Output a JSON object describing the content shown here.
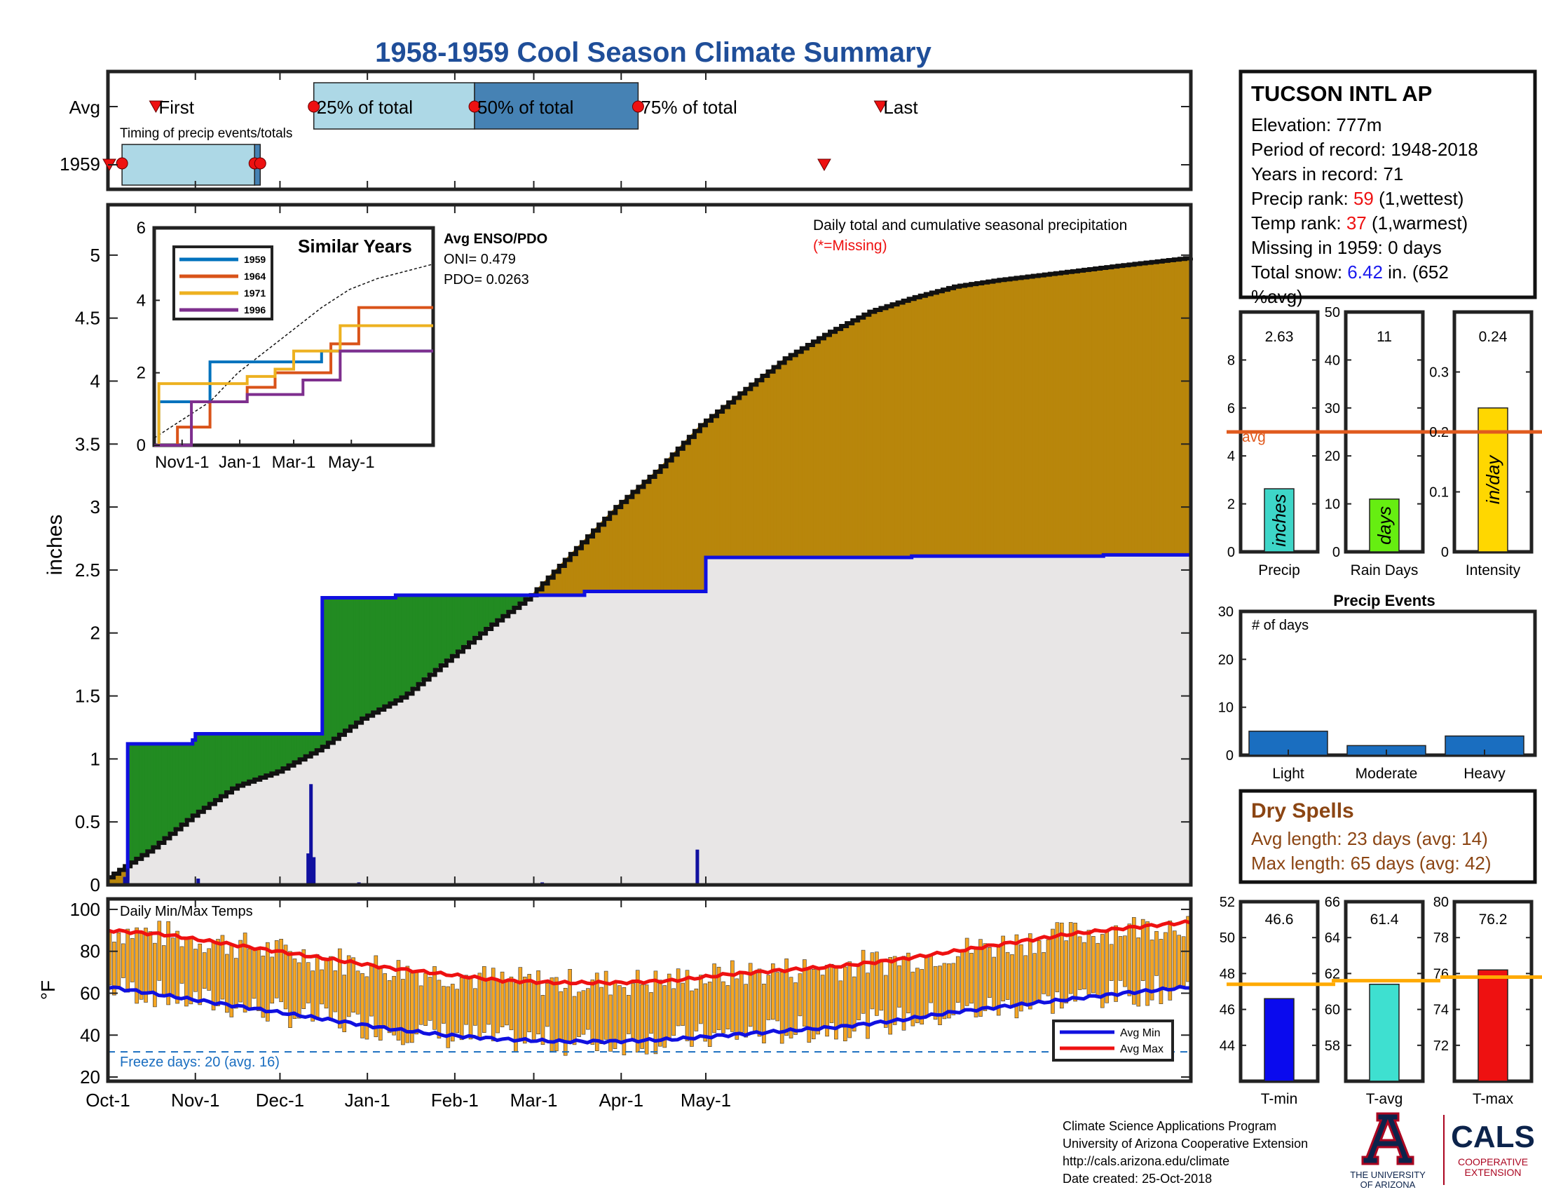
{
  "title": "1958-1959 Cool Season Climate Summary",
  "timing": {
    "row_labels": [
      "Avg",
      "1959"
    ],
    "avg_markers": {
      "first": "First",
      "p25": "25% of total",
      "p50": "50% of total",
      "p75": "75% of total",
      "last": "Last"
    },
    "caption": "Timing of precip events/totals",
    "avg_first_day": 17,
    "avg_p25_day": 73,
    "avg_p50_day": 130,
    "avg_p75_day": 188,
    "avg_last_day": 274,
    "y1959_first_day": 0,
    "y1959_p25_day": 5,
    "y1959_p50_day": 52,
    "y1959_p75_day": 54,
    "y1959_last_day": 254
  },
  "station": {
    "name": "TUCSON INTL AP",
    "elevation": "Elevation: 777m",
    "period": "Period of record: 1948-2018",
    "years": "Years in record: 71",
    "precip_rank_label": "Precip rank: ",
    "precip_rank_value": "59",
    "precip_rank_suffix": " (1,wettest)",
    "temp_rank_label": "Temp rank: ",
    "temp_rank_value": "37",
    "temp_rank_suffix": " (1,warmest)",
    "missing": "Missing in 1959: 0 days",
    "snow_label": "Total snow: ",
    "snow_value": "6.42",
    "snow_suffix": " in. (652",
    "snow_suffix2": "%avg)"
  },
  "precip_main": {
    "ylabel": "inches",
    "annotation": "Daily total and cumulative seasonal precipitation",
    "missing_note": "(*=Missing)",
    "yticks": [
      "0",
      "0.5",
      "1",
      "1.5",
      "2",
      "2.5",
      "3",
      "3.5",
      "4",
      "4.5",
      "5"
    ]
  },
  "inset": {
    "title": "Similar Years",
    "enso_title": "Avg ENSO/PDO",
    "oni": "ONI= 0.479",
    "pdo": "PDO= 0.0263",
    "yticks": [
      "0",
      "2",
      "4",
      "6"
    ],
    "xticks": [
      "Nov1-1",
      "Jan-1",
      "Mar-1",
      "May-1"
    ],
    "legend": [
      "1959",
      "1964",
      "1971",
      "1996"
    ]
  },
  "bars_summary": {
    "precip": {
      "label": "Precip",
      "value_text": "2.63",
      "unit": "inches",
      "yticks": [
        "0",
        "2",
        "4",
        "6",
        "8"
      ],
      "avg_label": "avg"
    },
    "rain_days": {
      "label": "Rain Days",
      "value_text": "11",
      "unit": "days",
      "yticks": [
        "0",
        "10",
        "20",
        "30",
        "40",
        "50"
      ]
    },
    "intensity": {
      "label": "Intensity",
      "value_text": "0.24",
      "unit": "in/day",
      "yticks": [
        "0",
        "0.1",
        "0.2",
        "0.3"
      ]
    }
  },
  "precip_events": {
    "title": "Precip Events",
    "ylabel": "# of days",
    "yticks": [
      "0",
      "10",
      "20",
      "30"
    ],
    "categories": [
      "Light",
      "Moderate",
      "Heavy"
    ]
  },
  "dry_spells": {
    "title": "Dry Spells",
    "avg": "Avg length: 23 days (avg: 14)",
    "max": "Max length: 65 days (avg: 42)"
  },
  "temps_main": {
    "label": "Daily Min/Max Temps",
    "ylabel": "°F",
    "yticks": [
      "20",
      "40",
      "60",
      "80",
      "100"
    ],
    "freeze": "Freeze days: 20 (avg. 16)",
    "legend_min": "Avg Min",
    "legend_max": "Avg Max",
    "xticks": [
      "Oct-1",
      "Nov-1",
      "Dec-1",
      "Jan-1",
      "Feb-1",
      "Mar-1",
      "Apr-1",
      "May-1"
    ]
  },
  "temp_summary": {
    "tmin": {
      "label": "T-min",
      "value_text": "46.6",
      "yticks": [
        "44",
        "46",
        "48",
        "50",
        "52"
      ]
    },
    "tavg": {
      "label": "T-avg",
      "value_text": "61.4",
      "yticks": [
        "58",
        "60",
        "62",
        "64",
        "66"
      ]
    },
    "tmax": {
      "label": "T-max",
      "value_text": "76.2",
      "yticks": [
        "72",
        "74",
        "76",
        "78",
        "80"
      ]
    }
  },
  "footer": {
    "line1": "Climate Science Applications Program",
    "line2": "University of Arizona Cooperative Extension",
    "line3": "http://cals.arizona.edu/climate",
    "line4": " Date created: 25-Oct-2018",
    "ua_line1": "THE UNIVERSITY",
    "ua_line2": "OF ARIZONA",
    "cals": "CALS",
    "cals_sub1": "COOPERATIVE",
    "cals_sub2": "EXTENSION"
  },
  "colors": {
    "title": "#1f4e99",
    "above_avg": "#b8860b",
    "below_avg_gap": "#228b22",
    "avg_fill": "#e8e6e6",
    "cum_line": "#1010e0",
    "temp_bar": "#f5a623",
    "avg_min_line": "#1010e0",
    "avg_max_line": "#ee1111",
    "rank_red": "#ee1111",
    "snow_blue": "#1a1aee",
    "dry_brown": "#8b4513",
    "avg_orange": "#e05a1e",
    "precip_bar": "#3ed6c8",
    "raindays_bar": "#66ee11",
    "intensity_bar": "#ffd700",
    "event_bar": "#1a6ec0",
    "tmin_bar": "#0a0aee",
    "tavg_bar": "#3ee0d0",
    "tmax_bar": "#ee1111",
    "temp_avg_line": "#ffaa00"
  },
  "chart_data": [
    {
      "type": "area",
      "name": "cumulative_precip",
      "xlabel": "",
      "ylabel": "inches",
      "ylim": [
        0,
        5.4
      ],
      "x_days": [
        0,
        6,
        7,
        14,
        30,
        31,
        46,
        55,
        76,
        102,
        151,
        169,
        212,
        285,
        353,
        384
      ],
      "observed_cum": [
        0,
        0.05,
        1.12,
        1.12,
        1.15,
        1.2,
        1.2,
        1.2,
        2.28,
        2.3,
        2.3,
        2.33,
        2.6,
        2.61,
        2.62,
        2.63
      ],
      "avg_cum_x_days": [
        0,
        15,
        30,
        45,
        60,
        75,
        90,
        105,
        120,
        135,
        150,
        165,
        180,
        195,
        210,
        225,
        240,
        255,
        270,
        285,
        300,
        315,
        330,
        345,
        360,
        384
      ],
      "avg_cum": [
        0.06,
        0.28,
        0.55,
        0.78,
        0.9,
        1.08,
        1.32,
        1.5,
        1.78,
        2.05,
        2.3,
        2.65,
        3.0,
        3.3,
        3.65,
        3.92,
        4.18,
        4.38,
        4.55,
        4.66,
        4.75,
        4.8,
        4.84,
        4.88,
        4.92,
        4.98
      ],
      "daily_x_days": [
        6,
        7,
        32,
        71,
        72,
        73,
        89,
        154,
        209
      ],
      "daily_precip": [
        0.06,
        0.13,
        0.05,
        0.25,
        0.8,
        0.22,
        0.02,
        0.02,
        0.28
      ]
    },
    {
      "type": "line",
      "name": "similar_years",
      "ylim": [
        0,
        6
      ],
      "x_day_range": [
        0,
        300
      ],
      "series": [
        {
          "name": "1959",
          "x": [
            0,
            5,
            10,
            30,
            60,
            100,
            140,
            180,
            300
          ],
          "y": [
            0,
            1.2,
            1.2,
            1.2,
            2.3,
            2.3,
            2.3,
            2.6,
            2.6
          ]
        },
        {
          "name": "1964",
          "x": [
            0,
            25,
            60,
            100,
            130,
            190,
            220,
            300
          ],
          "y": [
            0,
            0.5,
            1.2,
            1.6,
            2.0,
            2.8,
            3.8,
            3.8
          ]
        },
        {
          "name": "1971",
          "x": [
            0,
            5,
            60,
            100,
            130,
            150,
            200,
            300
          ],
          "y": [
            0,
            1.7,
            1.7,
            1.9,
            2.1,
            2.6,
            3.3,
            3.3
          ]
        },
        {
          "name": "1996",
          "x": [
            0,
            30,
            40,
            60,
            100,
            160,
            200,
            300
          ],
          "y": [
            0,
            0,
            1.2,
            1.2,
            1.4,
            1.8,
            2.6,
            2.6
          ]
        }
      ],
      "avg_x": [
        0,
        30,
        60,
        90,
        120,
        150,
        180,
        210,
        240,
        270,
        300
      ],
      "avg_y": [
        0.2,
        0.7,
        1.2,
        2.0,
        2.6,
        3.2,
        3.8,
        4.3,
        4.6,
        4.8,
        5.0
      ]
    },
    {
      "type": "bar",
      "name": "seasonal_summary",
      "precip": {
        "value": 2.63,
        "avg": 5.0,
        "ylim": [
          0,
          10
        ]
      },
      "rain_days": {
        "value": 11,
        "avg": 25,
        "ylim": [
          0,
          50
        ]
      },
      "intensity": {
        "value": 0.24,
        "avg": 0.2,
        "ylim": [
          0,
          0.4
        ]
      }
    },
    {
      "type": "bar",
      "name": "precip_events",
      "categories": [
        "Light",
        "Moderate",
        "Heavy"
      ],
      "values": [
        5,
        2,
        4
      ],
      "ylim": [
        0,
        30
      ]
    },
    {
      "type": "bar",
      "name": "daily_temps",
      "ylim": [
        18,
        105
      ],
      "avg_max_x_days": [
        0,
        20,
        40,
        60,
        80,
        100,
        120,
        140,
        160,
        180,
        200,
        220,
        240,
        260,
        280,
        300,
        320,
        340,
        360,
        384
      ],
      "avg_max": [
        90,
        88,
        84,
        80,
        76,
        72,
        69,
        66,
        65,
        65,
        66,
        69,
        71,
        73,
        76,
        80,
        84,
        88,
        91,
        94
      ],
      "avg_min_x_days": [
        0,
        20,
        40,
        60,
        80,
        100,
        120,
        140,
        160,
        180,
        200,
        220,
        240,
        260,
        280,
        300,
        320,
        340,
        360,
        384
      ],
      "avg_min": [
        63,
        59,
        55,
        51,
        47,
        43,
        40,
        38,
        37,
        37,
        38,
        40,
        42,
        44,
        47,
        51,
        54,
        57,
        60,
        63
      ],
      "freeze_line": 32
    },
    {
      "type": "bar",
      "name": "temp_summary",
      "tmin": {
        "value": 46.6,
        "avg": 47.4,
        "ylim": [
          42,
          52
        ]
      },
      "tavg": {
        "value": 61.4,
        "avg": 61.6,
        "ylim": [
          56,
          66
        ]
      },
      "tmax": {
        "value": 76.2,
        "avg": 75.8,
        "ylim": [
          70,
          80
        ]
      }
    }
  ]
}
